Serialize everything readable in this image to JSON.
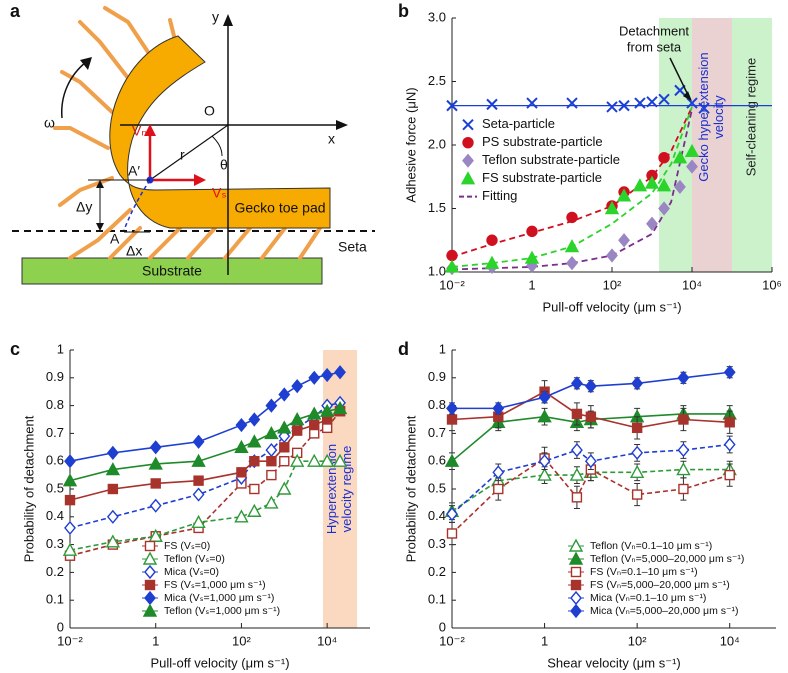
{
  "panel_labels": [
    "a",
    "b",
    "c",
    "d"
  ],
  "diagram": {
    "labels": [
      "ω",
      "y",
      "x",
      "O",
      "Vₙ",
      "r",
      "θ",
      "A′",
      "Vₛ",
      "Δy",
      "Gecko toe pad",
      "A",
      "Δx",
      "Seta",
      "Substrate"
    ]
  },
  "chart_data": [
    {
      "type": "scatter",
      "xscale": "log",
      "xlabel": "Pull-off velocity (μm s⁻¹)",
      "ylabel": "Adhesive force (μN)",
      "xlim": [
        0.01,
        1000000
      ],
      "ylim": [
        1.0,
        3.0
      ],
      "xticks": [
        {
          "value": 0.01,
          "label": "10⁻²"
        },
        1,
        {
          "value": 100,
          "label": "10²"
        },
        {
          "value": 10000,
          "label": "10⁴"
        },
        {
          "value": 1000000,
          "label": "10⁶"
        }
      ],
      "yticks": [
        {
          "value": 1.0,
          "label": "1.0"
        },
        1.5,
        {
          "value": 2.0,
          "label": "2.0"
        },
        2.5,
        {
          "value": 3.0,
          "label": "3.0"
        }
      ],
      "legend": "center left",
      "regions": [
        {
          "xlim": [
            1500,
            10000
          ],
          "color": "#ccf2cc"
        },
        {
          "xlim": [
            10000,
            100000
          ],
          "color": "#ead2d2",
          "label": [
            "Gecko hyperextension",
            "velocity"
          ],
          "label_color": "#1a2fd0"
        },
        {
          "xlim": [
            100000,
            1000000
          ],
          "color": "#ccf2cc",
          "label": [
            "Self-cleaning regime"
          ],
          "label_color": "#222222"
        }
      ],
      "annotation": {
        "text": [
          "Detachment",
          "from seta"
        ],
        "x": 10000,
        "y": 2.33
      },
      "fit_x": [
        0.01,
        0.1,
        1,
        10,
        100,
        1000,
        3000,
        10000
      ],
      "fit_legend": {
        "name": "Fitting",
        "color": "#7b2d8b"
      },
      "series": [
        {
          "name": "Seta-particle",
          "color": "#1a3fd6",
          "marker": "x",
          "filled": true,
          "ref_line": 2.31,
          "x": [
            0.01,
            0.1,
            1,
            10,
            100,
            200,
            500,
            1000,
            2000,
            5000,
            10000,
            20000
          ],
          "values": [
            2.31,
            2.32,
            2.33,
            2.33,
            2.3,
            2.31,
            2.33,
            2.34,
            2.36,
            2.43,
            2.33,
            2.29
          ]
        },
        {
          "name": "PS substrate-particle",
          "color": "#d0101f",
          "marker": "circle",
          "filled": true,
          "fit_color": "#d0101f",
          "x": [
            0.01,
            0.1,
            1,
            10,
            100,
            200,
            1000,
            2000
          ],
          "values": [
            1.13,
            1.25,
            1.32,
            1.43,
            1.52,
            1.63,
            1.76,
            1.9
          ],
          "fit": [
            1.12,
            1.22,
            1.31,
            1.4,
            1.52,
            1.75,
            1.95,
            2.3
          ]
        },
        {
          "name": "Teflon substrate-particle",
          "color": "#9a86c2",
          "marker": "diamond",
          "filled": true,
          "fit_color": "#7b2d8b",
          "x": [
            0.01,
            0.1,
            1,
            10,
            100,
            200,
            1000,
            2000,
            5000,
            10000
          ],
          "values": [
            1.03,
            1.04,
            1.05,
            1.07,
            1.13,
            1.25,
            1.38,
            1.5,
            1.67,
            1.83
          ],
          "fit": [
            1.02,
            1.03,
            1.04,
            1.07,
            1.13,
            1.3,
            1.55,
            2.28
          ]
        },
        {
          "name": "FS substrate-particle",
          "color": "#2bd42b",
          "marker": "triangle",
          "filled": true,
          "fit_color": "#2bd42b",
          "x": [
            0.01,
            0.1,
            1,
            10,
            100,
            200,
            500,
            1000,
            2000,
            5000,
            10000
          ],
          "values": [
            1.04,
            1.07,
            1.11,
            1.2,
            1.5,
            1.6,
            1.68,
            1.7,
            1.68,
            1.9,
            1.95
          ],
          "fit": [
            1.04,
            1.07,
            1.11,
            1.2,
            1.38,
            1.62,
            1.85,
            2.3
          ]
        }
      ]
    },
    {
      "type": "scatter",
      "xscale": "log",
      "xlabel": "Pull-off velocity (μm s⁻¹)",
      "ylabel": "Probability of detachment",
      "xlim": [
        0.01,
        100000
      ],
      "ylim": [
        0,
        1
      ],
      "xticks": [
        {
          "value": 0.01,
          "label": "10⁻²"
        },
        1,
        {
          "value": 100,
          "label": "10²"
        },
        {
          "value": 10000,
          "label": "10⁴"
        }
      ],
      "yticks": [
        0,
        0.1,
        0.2,
        0.3,
        0.4,
        0.5,
        0.6,
        0.7,
        0.8,
        0.9,
        1
      ],
      "legend": "lower center",
      "regions": [
        {
          "xlim": [
            8000,
            50000
          ],
          "color": "#fbd9c0",
          "label": [
            "Hyperextension",
            "velocity regime"
          ],
          "label_color": "#1a2fd0"
        }
      ],
      "x": [
        0.01,
        0.1,
        1,
        10,
        100,
        200,
        500,
        1000,
        2000,
        5000,
        10000,
        20000
      ],
      "series": [
        {
          "name": "FS (Vₛ=0)",
          "color": "#a8322c",
          "marker": "square",
          "filled": false,
          "line": "dashed",
          "values": [
            0.26,
            0.3,
            0.33,
            0.36,
            0.52,
            0.5,
            0.55,
            0.6,
            0.63,
            0.7,
            0.72,
            0.78
          ]
        },
        {
          "name": "Teflon (Vₛ=0)",
          "color": "#2e9a3a",
          "marker": "triangle",
          "filled": false,
          "line": "dashed",
          "values": [
            0.28,
            0.31,
            0.33,
            0.38,
            0.4,
            0.42,
            0.45,
            0.5,
            0.6,
            0.6,
            0.6,
            0.6
          ]
        },
        {
          "name": "Mica (Vₛ=0)",
          "color": "#1f3fd1",
          "marker": "diamond",
          "filled": false,
          "line": "dashed",
          "values": [
            0.36,
            0.4,
            0.44,
            0.48,
            0.54,
            0.6,
            0.64,
            0.69,
            0.72,
            0.76,
            0.8,
            0.81
          ]
        },
        {
          "name": "FS (Vₛ=1,000 μm s⁻¹)",
          "color": "#a8322c",
          "marker": "square",
          "filled": true,
          "line": "solid",
          "values": [
            0.46,
            0.5,
            0.52,
            0.53,
            0.56,
            0.6,
            0.6,
            0.65,
            0.71,
            0.73,
            0.75,
            0.78
          ]
        },
        {
          "name": "Mica (Vₛ=1,000 μm s⁻¹)",
          "color": "#1f3fd1",
          "marker": "diamond",
          "filled": true,
          "line": "solid",
          "values": [
            0.6,
            0.63,
            0.65,
            0.67,
            0.73,
            0.75,
            0.8,
            0.84,
            0.87,
            0.9,
            0.91,
            0.92
          ]
        },
        {
          "name": "Teflon (Vₛ=1,000 μm s⁻¹)",
          "color": "#1f8a2a",
          "marker": "triangle",
          "filled": true,
          "line": "solid",
          "values": [
            0.53,
            0.57,
            0.59,
            0.6,
            0.65,
            0.67,
            0.7,
            0.72,
            0.75,
            0.77,
            0.78,
            0.79
          ]
        }
      ]
    },
    {
      "type": "scatter",
      "xscale": "log",
      "xlabel": "Shear velocity (μm s⁻¹)",
      "ylabel": "Probability of detachment",
      "xlim": [
        0.01,
        100000
      ],
      "ylim": [
        0,
        1
      ],
      "xticks": [
        {
          "value": 0.01,
          "label": "10⁻²"
        },
        1,
        {
          "value": 100,
          "label": "10²"
        },
        {
          "value": 10000,
          "label": "10⁴"
        }
      ],
      "yticks": [
        0,
        0.1,
        0.2,
        0.3,
        0.4,
        0.5,
        0.6,
        0.7,
        0.8,
        0.9,
        1
      ],
      "legend": "lower right",
      "x": [
        0.01,
        0.1,
        1,
        5,
        10,
        100,
        1000,
        10000
      ],
      "series": [
        {
          "name": "Teflon (Vₙ=0.1–10 μm s⁻¹)",
          "color": "#2e9a3a",
          "marker": "triangle",
          "filled": false,
          "line": "dashed",
          "values": [
            0.42,
            0.53,
            0.55,
            0.55,
            0.56,
            0.56,
            0.57,
            0.57
          ],
          "errors": [
            0.03,
            0.03,
            0.03,
            0.03,
            0.03,
            0.03,
            0.03,
            0.03
          ]
        },
        {
          "name": "Teflon (Vₙ=5,000–20,000 μm s⁻¹)",
          "color": "#1f8a2a",
          "marker": "triangle",
          "filled": true,
          "line": "solid",
          "values": [
            0.6,
            0.74,
            0.76,
            0.74,
            0.75,
            0.76,
            0.77,
            0.77
          ],
          "errors": [
            0.03,
            0.03,
            0.03,
            0.03,
            0.03,
            0.03,
            0.03,
            0.03
          ]
        },
        {
          "name": "FS (Vₙ=0.1–10 μm s⁻¹)",
          "color": "#a8322c",
          "marker": "square",
          "filled": false,
          "line": "dashed",
          "values": [
            0.34,
            0.5,
            0.61,
            0.47,
            0.57,
            0.48,
            0.5,
            0.55
          ],
          "errors": [
            0.04,
            0.04,
            0.04,
            0.04,
            0.04,
            0.04,
            0.04,
            0.04
          ]
        },
        {
          "name": "FS (Vₙ=5,000–20,000 μm s⁻¹)",
          "color": "#a8322c",
          "marker": "square",
          "filled": true,
          "line": "solid",
          "values": [
            0.75,
            0.76,
            0.85,
            0.77,
            0.76,
            0.72,
            0.75,
            0.74
          ],
          "errors": [
            0.04,
            0.04,
            0.04,
            0.04,
            0.04,
            0.04,
            0.04,
            0.04
          ]
        },
        {
          "name": "Mica (Vₙ=0.1–10 μm s⁻¹)",
          "color": "#1f3fd1",
          "marker": "diamond",
          "filled": false,
          "line": "dashed",
          "values": [
            0.41,
            0.56,
            0.6,
            0.64,
            0.6,
            0.63,
            0.64,
            0.66
          ],
          "errors": [
            0.03,
            0.03,
            0.03,
            0.03,
            0.03,
            0.03,
            0.03,
            0.03
          ]
        },
        {
          "name": "Mica (Vₙ=5,000–20,000 μm s⁻¹)",
          "color": "#1f3fd1",
          "marker": "diamond",
          "filled": true,
          "line": "solid",
          "values": [
            0.79,
            0.79,
            0.83,
            0.88,
            0.87,
            0.88,
            0.9,
            0.92
          ],
          "errors": [
            0.02,
            0.02,
            0.02,
            0.02,
            0.02,
            0.02,
            0.02,
            0.02
          ]
        }
      ]
    }
  ]
}
